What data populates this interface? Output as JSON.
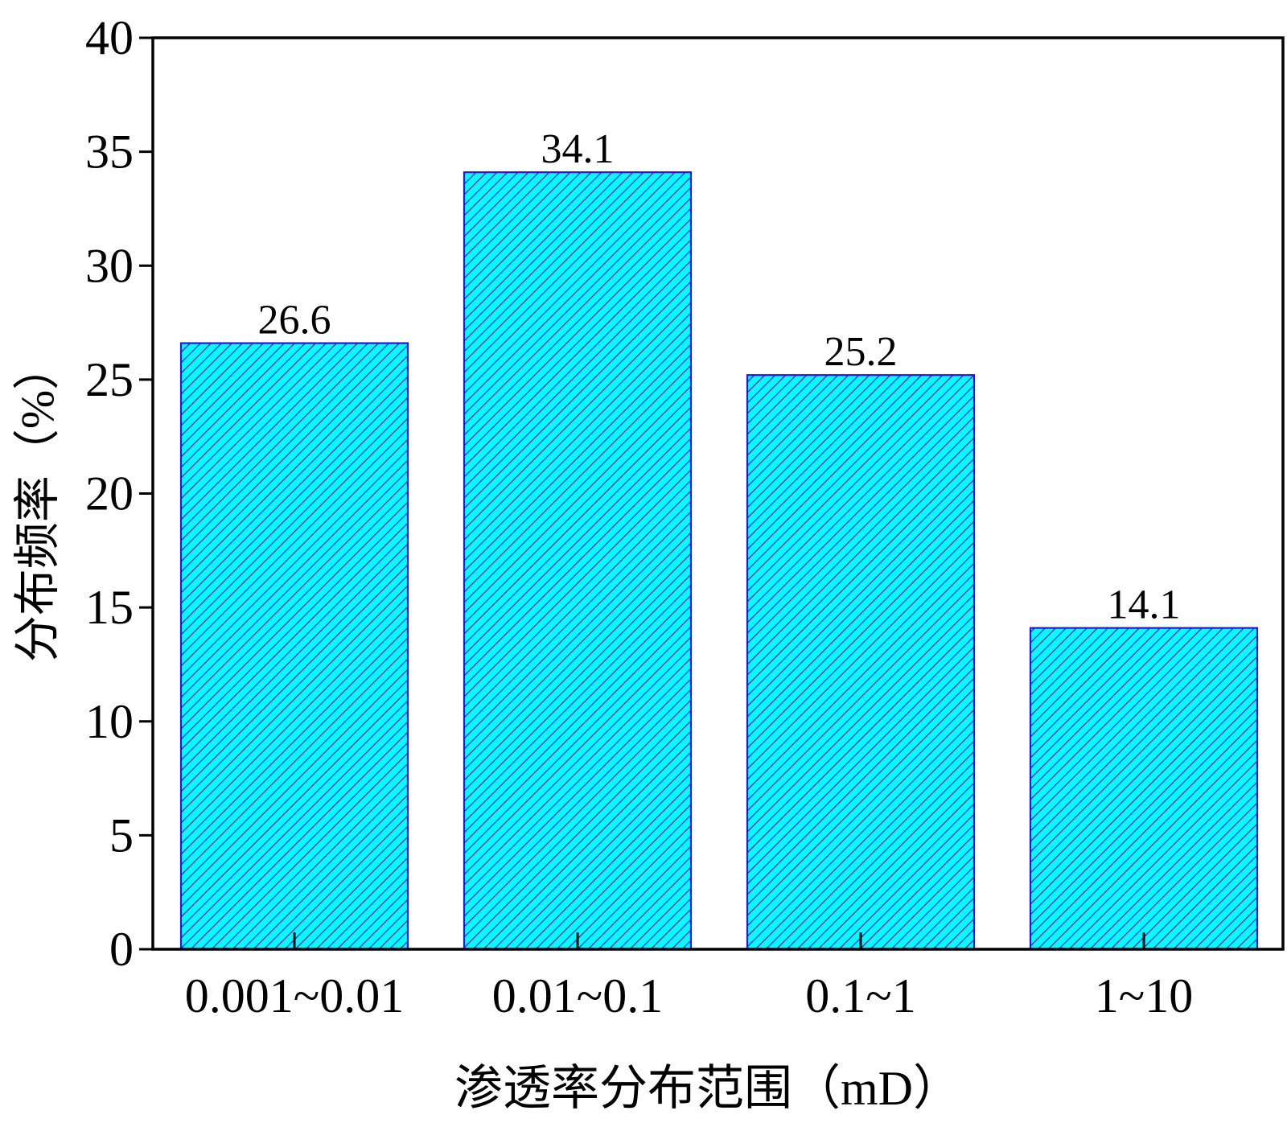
{
  "chart_data": {
    "type": "bar",
    "categories": [
      "0.001~0.01",
      "0.01~0.1",
      "0.1~1",
      "1~10"
    ],
    "values": [
      26.6,
      34.1,
      25.2,
      14.1
    ],
    "data_labels": [
      "26.6",
      "34.1",
      "25.2",
      "14.1"
    ],
    "xlabel": "渗透率分布范围（mD）",
    "ylabel": "分布频率（%）",
    "ylim": [
      0,
      40
    ],
    "yticks": [
      "0",
      "5",
      "10",
      "15",
      "20",
      "25",
      "30",
      "35",
      "40"
    ],
    "grid": false,
    "legend": "none",
    "bar_fill_color": "#00FFFF",
    "bar_edge_color": "#1A1AE6",
    "bar_pattern": "diagonal-hatch"
  }
}
